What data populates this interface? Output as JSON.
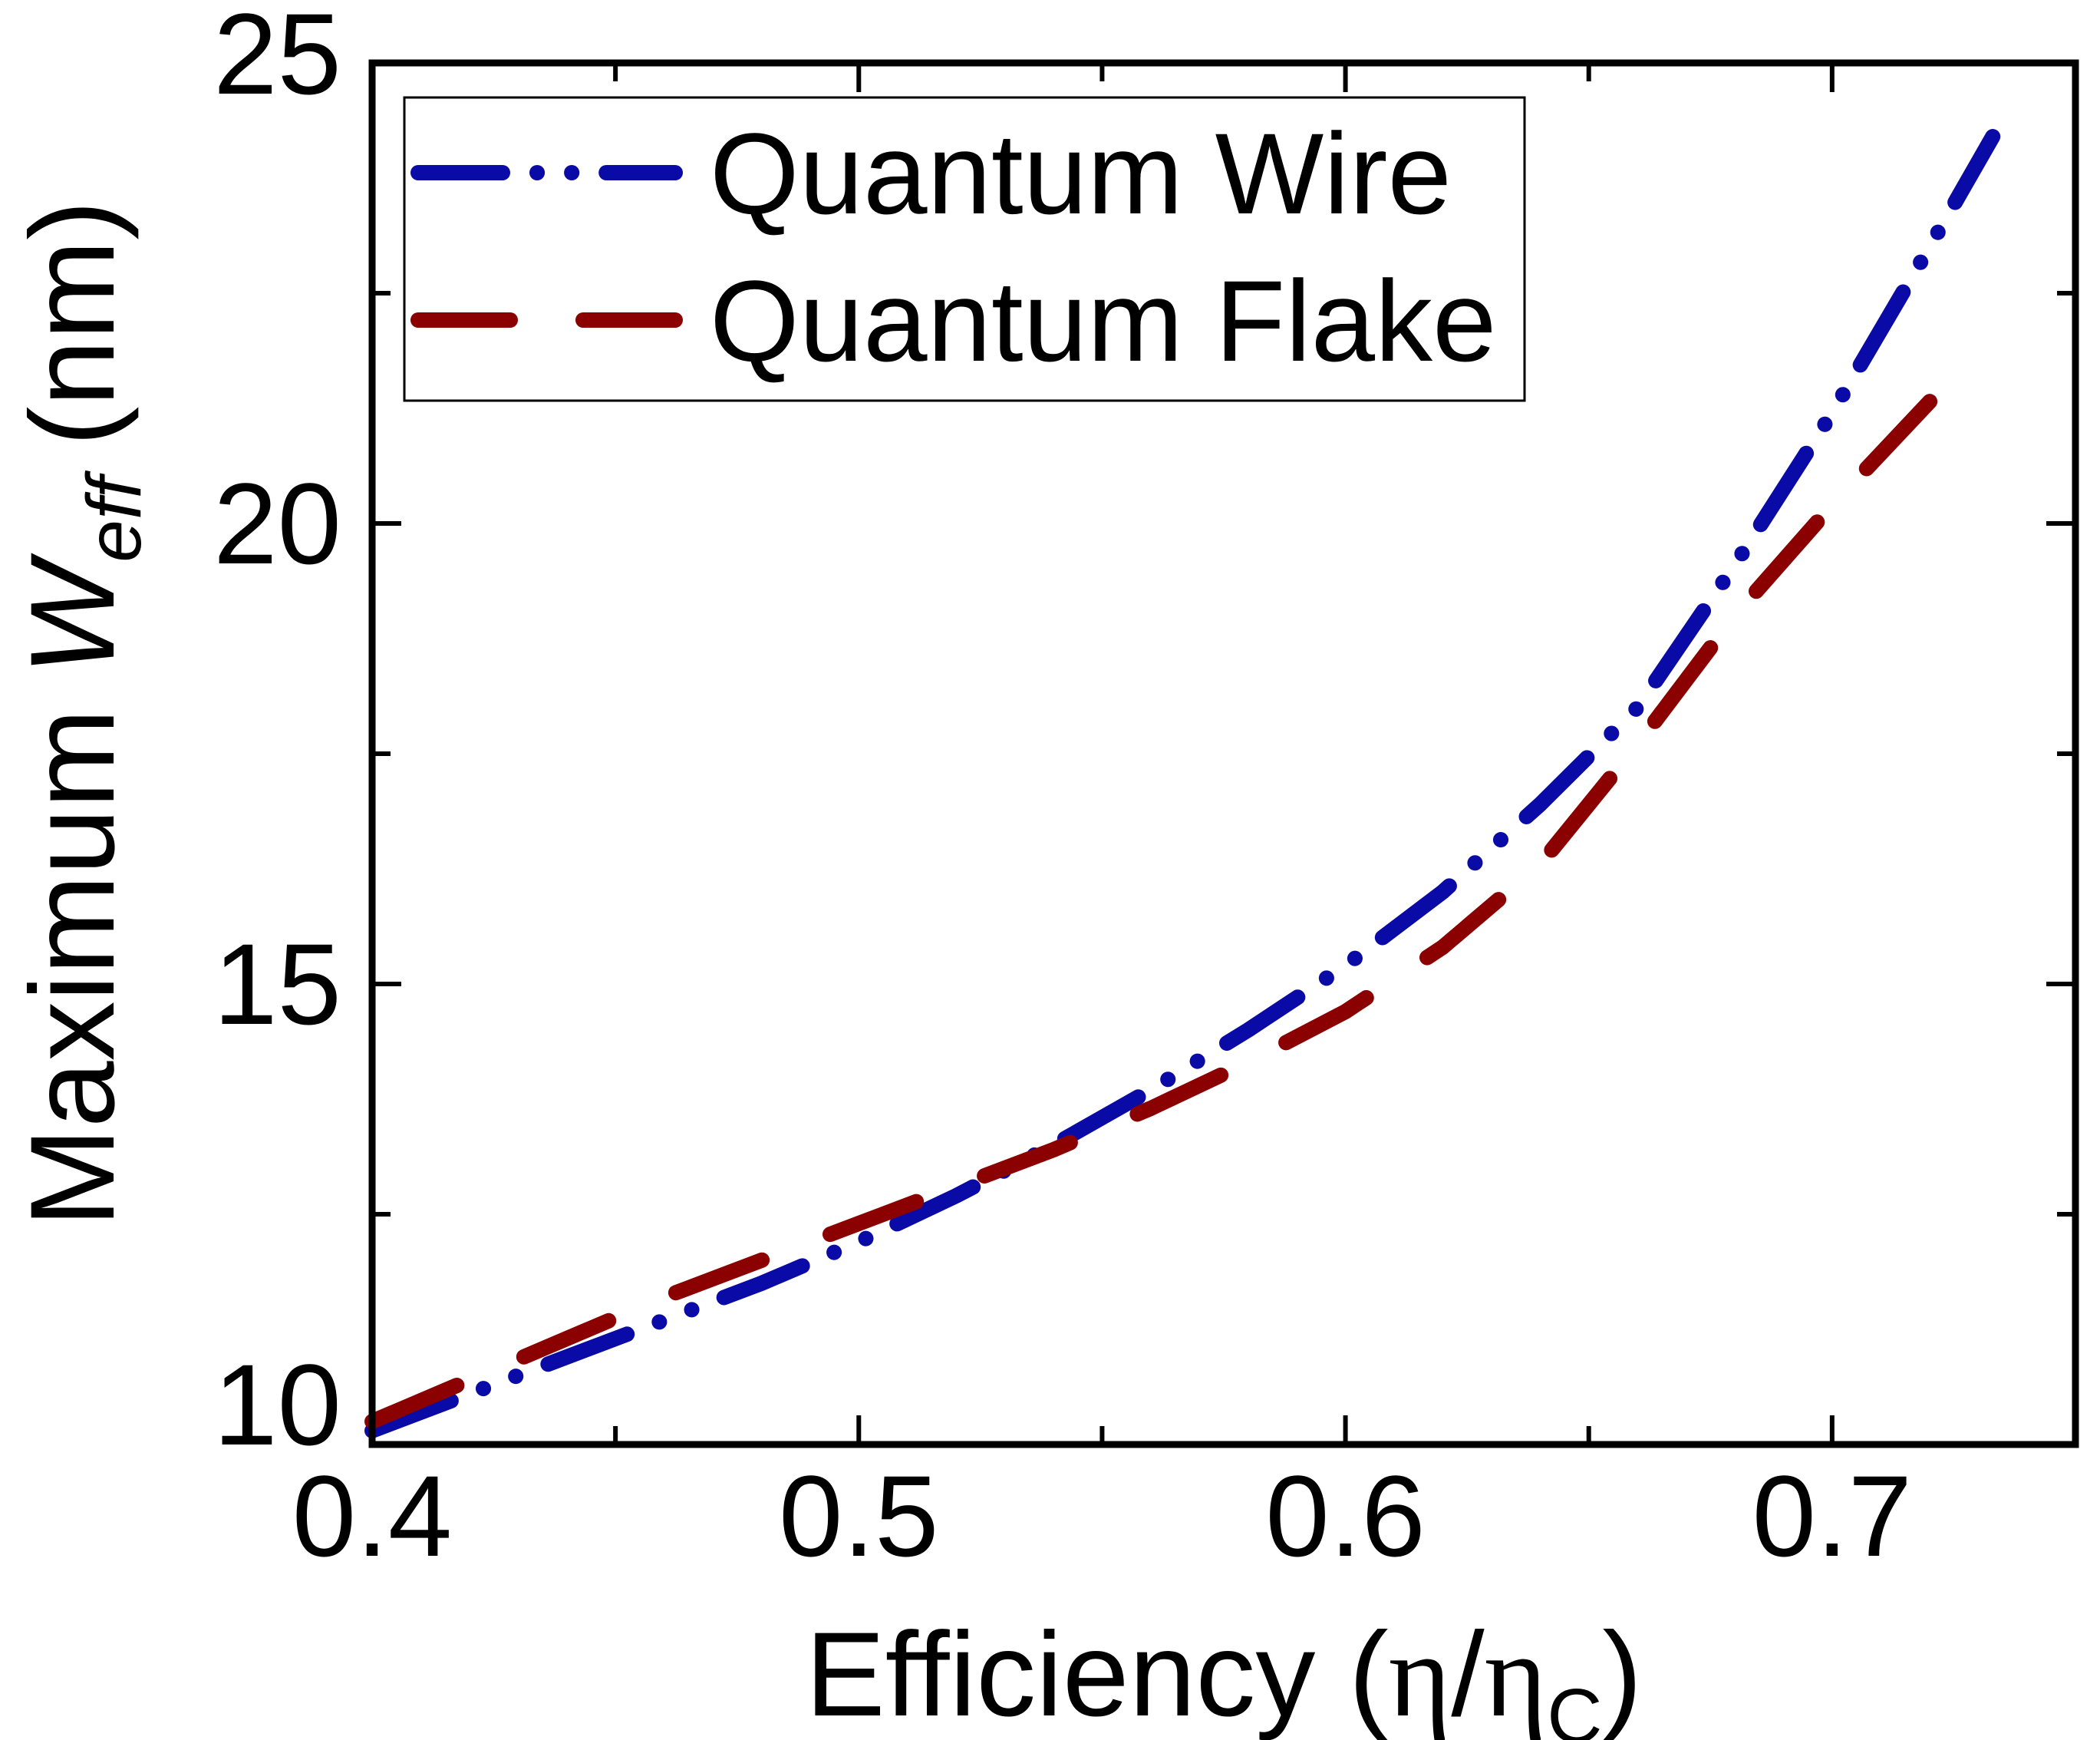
{
  "chart_data": {
    "type": "line",
    "title": "",
    "xlabel": {
      "text": "Efficiency (",
      "eta": "η",
      "slash": "/",
      "eta_sub": "C",
      "close": ")"
    },
    "ylabel": {
      "prefix": "Maximum ",
      "var": "W",
      "sub": "eff",
      "unit": "(nm)"
    },
    "xlim": [
      0.4,
      0.75
    ],
    "ylim": [
      10,
      25
    ],
    "xticks": [
      0.4,
      0.5,
      0.6,
      0.7
    ],
    "xtick_labels": [
      "0.4",
      "0.5",
      "0.6",
      "0.7"
    ],
    "x_minor_ticks": [
      0.45,
      0.55,
      0.65
    ],
    "yticks": [
      10,
      15,
      20,
      25
    ],
    "ytick_labels": [
      "10",
      "15",
      "20",
      "25"
    ],
    "y_minor_ticks": [
      12.5,
      17.5,
      22.5
    ],
    "grid": false,
    "legend_position": "top-left",
    "series": [
      {
        "name": "Quantum Wire",
        "color": "#0a0aa6",
        "style": "dash-dot-dot",
        "x": [
          0.4,
          0.42,
          0.44,
          0.46,
          0.48,
          0.5,
          0.52,
          0.54,
          0.56,
          0.58,
          0.6,
          0.62,
          0.64,
          0.66,
          0.68,
          0.7,
          0.72,
          0.733
        ],
        "y": [
          10.15,
          10.55,
          10.95,
          11.35,
          11.75,
          12.2,
          12.7,
          13.25,
          13.85,
          14.5,
          15.2,
          16.0,
          16.95,
          18.0,
          19.55,
          21.2,
          23.0,
          24.2
        ]
      },
      {
        "name": "Quantum Flake",
        "color": "#8b0000",
        "style": "dashed",
        "x": [
          0.4,
          0.42,
          0.44,
          0.46,
          0.48,
          0.5,
          0.52,
          0.54,
          0.56,
          0.58,
          0.6,
          0.62,
          0.64,
          0.66,
          0.68,
          0.7,
          0.725
        ],
        "y": [
          10.25,
          10.7,
          11.15,
          11.6,
          12.0,
          12.4,
          12.8,
          13.2,
          13.65,
          14.15,
          14.7,
          15.4,
          16.3,
          17.6,
          19.0,
          20.2,
          21.6
        ]
      }
    ]
  }
}
